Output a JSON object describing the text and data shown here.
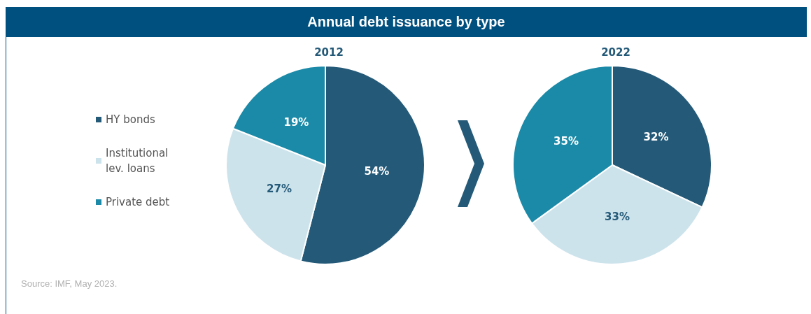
{
  "chart_data": [
    {
      "type": "other",
      "title": "Annual debt issuance by type",
      "annotations": [
        "Source: IMF, May 2023."
      ]
    },
    {
      "type": "pie",
      "title": "2012",
      "categories": [
        "HY bonds",
        "Institutional lev. loans",
        "Private debt"
      ],
      "values": [
        54,
        27,
        19
      ],
      "colors": [
        "#245a78",
        "#cde3ec",
        "#1a8aa8"
      ],
      "value_labels": [
        "54%",
        "27%",
        "19%"
      ],
      "legend": "left"
    },
    {
      "type": "pie",
      "title": "2022",
      "categories": [
        null,
        null,
        null
      ],
      "values": [
        32,
        33,
        35
      ],
      "colors": [
        "#245a78",
        "#cde3ec",
        "#1a8aa8"
      ],
      "value_labels": [
        "32%",
        "33%",
        "35%"
      ]
    }
  ]
}
